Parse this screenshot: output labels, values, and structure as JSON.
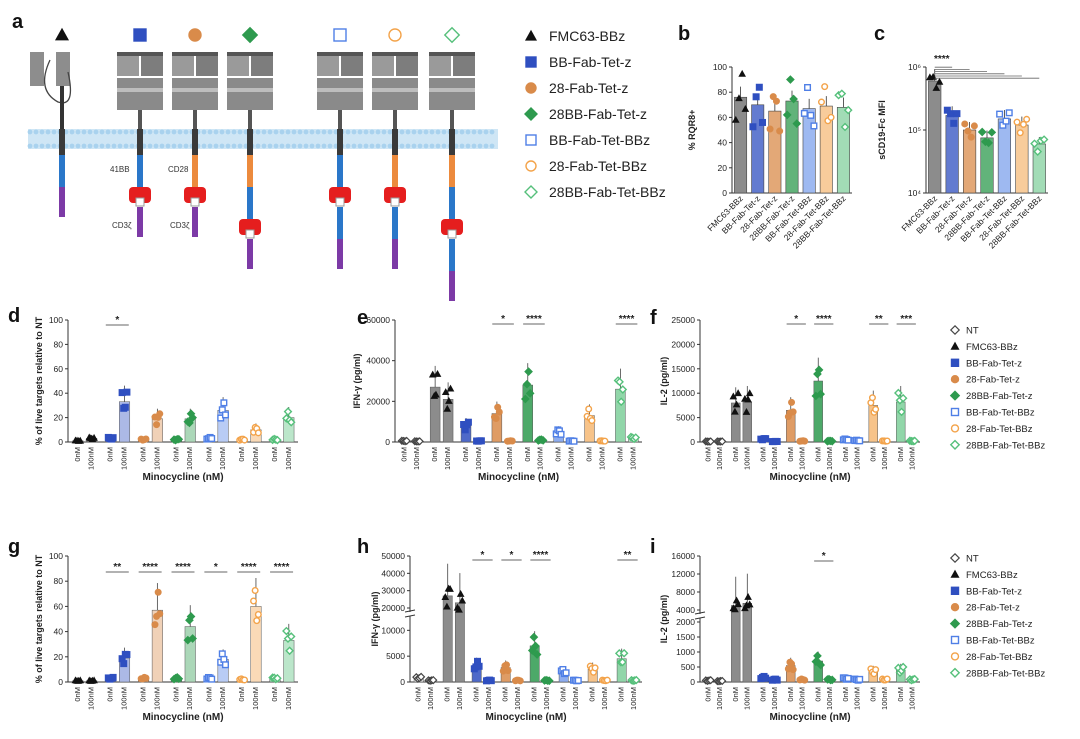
{
  "panel_letters": [
    "a",
    "b",
    "c",
    "d",
    "e",
    "f",
    "g",
    "h",
    "i"
  ],
  "constructs": [
    {
      "name": "FMC63-BBz",
      "color": "#111111",
      "marker": "triangle",
      "fill": "#111111"
    },
    {
      "name": "BB-Fab-Tet-z",
      "color": "#2f4fc0",
      "marker": "square",
      "fill": "#2f4fc0"
    },
    {
      "name": "28-Fab-Tet-z",
      "color": "#d98b4a",
      "marker": "circle",
      "fill": "#d98b4a"
    },
    {
      "name": "28BB-Fab-Tet-z",
      "color": "#2e9a4e",
      "marker": "diamond",
      "fill": "#2e9a4e"
    },
    {
      "name": "BB-Fab-Tet-BBz",
      "color": "#4f7fe6",
      "marker": "square",
      "fill": "none"
    },
    {
      "name": "28-Fab-Tet-BBz",
      "color": "#f3a34a",
      "marker": "circle",
      "fill": "none"
    },
    {
      "name": "28BB-Fab-Tet-BBz",
      "color": "#56c07b",
      "marker": "diamond",
      "fill": "none"
    }
  ],
  "domain_labels": {
    "bb": "41BB",
    "cd28": "CD28",
    "cd3a": "CD3ζ",
    "cd3b": "CD3ζ",
    "zeta": "ζ"
  },
  "legend2": [
    "NT",
    "FMC63-BBz",
    "BB-Fab-Tet-z",
    "28-Fab-Tet-z",
    "28BB-Fab-Tet-z",
    "BB-Fab-Tet-BBz",
    "28-Fab-Tet-BBz",
    "28BB-Fab-Tet-BBz"
  ],
  "x_tick_labels": [
    "0nM",
    "100nM"
  ],
  "chart_data": [
    {
      "panel": "b",
      "type": "bar",
      "ylabel": "% RQR8+",
      "ylim": [
        0,
        100
      ],
      "yticks": [
        0,
        20,
        40,
        60,
        80,
        100
      ],
      "categories": [
        "FMC63-BBz",
        "BB-Fab-Tet-z",
        "28-Fab-Tet-z",
        "28BB-Fab-Tet-z",
        "BB-Fab-Tet-BBz",
        "28-Fab-Tet-BBz",
        "28BB-Fab-Tet-BBz"
      ],
      "values": [
        76,
        70,
        65,
        73,
        67,
        69,
        68
      ]
    },
    {
      "panel": "c",
      "type": "bar",
      "ylabel": "sCD19-Fc MFI",
      "scale": "log",
      "ylim": [
        10000,
        1000000
      ],
      "ytick_labels": [
        "10⁴",
        "10⁵",
        "10⁶"
      ],
      "categories": [
        "FMC63-BBz",
        "BB-Fab-Tet-z",
        "28-Fab-Tet-z",
        "28BB-Fab-Tet-z",
        "BB-Fab-Tet-BBz",
        "28-Fab-Tet-BBz",
        "28BB-Fab-Tet-BBz"
      ],
      "values": [
        600000,
        170000,
        100000,
        75000,
        150000,
        120000,
        60000
      ],
      "significance": "****"
    },
    {
      "panel": "d",
      "type": "bar",
      "xlabel": "Minocycline (nM)",
      "ylabel": "% of live targets relative to NT",
      "ylim": [
        0,
        100
      ],
      "yticks": [
        0,
        20,
        40,
        60,
        80,
        100
      ],
      "groups": [
        "FMC63-BBz",
        "BB-Fab-Tet-z",
        "28-Fab-Tet-z",
        "28BB-Fab-Tet-z",
        "BB-Fab-Tet-BBz",
        "28-Fab-Tet-BBz",
        "28BB-Fab-Tet-BBz"
      ],
      "series": [
        {
          "values": [
            1,
            3,
            2,
            2,
            3,
            2,
            2
          ]
        },
        {
          "values": [
            3,
            33,
            19,
            19,
            26,
            10,
            20
          ]
        }
      ],
      "stars": [
        {
          "group": 1,
          "label": "*"
        }
      ]
    },
    {
      "panel": "e",
      "type": "bar",
      "xlabel": "Minocycline (nM)",
      "ylabel": "IFN-γ (pg/ml)",
      "ylim": [
        0,
        60000
      ],
      "yticks": [
        0,
        20000,
        40000,
        60000
      ],
      "groups": [
        "NT",
        "FMC63-BBz",
        "BB-Fab-Tet-z",
        "28-Fab-Tet-z",
        "28BB-Fab-Tet-z",
        "BB-Fab-Tet-BBz",
        "28-Fab-Tet-BBz",
        "28BB-Fab-Tet-BBz"
      ],
      "series": [
        {
          "values": [
            500,
            27000,
            8000,
            14000,
            28000,
            5000,
            13000,
            26000
          ]
        },
        {
          "values": [
            300,
            21000,
            500,
            500,
            1000,
            500,
            500,
            2000
          ]
        }
      ],
      "stars": [
        {
          "group": 3,
          "label": "*"
        },
        {
          "group": 4,
          "label": "****"
        },
        {
          "group": 7,
          "label": "****"
        }
      ]
    },
    {
      "panel": "f",
      "type": "bar",
      "xlabel": "Minocycline (nM)",
      "ylabel": "IL-2 (pg/ml)",
      "ylim": [
        0,
        25000
      ],
      "yticks": [
        0,
        5000,
        10000,
        15000,
        20000,
        25000
      ],
      "groups": [
        "NT",
        "FMC63-BBz",
        "BB-Fab-Tet-z",
        "28-Fab-Tet-z",
        "28BB-Fab-Tet-z",
        "BB-Fab-Tet-BBz",
        "28-Fab-Tet-BBz",
        "28BB-Fab-Tet-BBz"
      ],
      "series": [
        {
          "values": [
            100,
            8000,
            600,
            6500,
            12500,
            500,
            7500,
            8200
          ]
        },
        {
          "values": [
            100,
            8200,
            100,
            200,
            200,
            300,
            200,
            200
          ]
        }
      ],
      "stars": [
        {
          "group": 3,
          "label": "*"
        },
        {
          "group": 4,
          "label": "****"
        },
        {
          "group": 6,
          "label": "**"
        },
        {
          "group": 7,
          "label": "***"
        }
      ]
    },
    {
      "panel": "g",
      "type": "bar",
      "xlabel": "Minocycline (nM)",
      "ylabel": "% of live targets relative to NT",
      "ylim": [
        0,
        100
      ],
      "yticks": [
        0,
        20,
        40,
        60,
        80,
        100
      ],
      "groups": [
        "FMC63-BBz",
        "BB-Fab-Tet-z",
        "28-Fab-Tet-z",
        "28BB-Fab-Tet-z",
        "BB-Fab-Tet-BBz",
        "28-Fab-Tet-BBz",
        "28BB-Fab-Tet-BBz"
      ],
      "series": [
        {
          "values": [
            1,
            3,
            3,
            3,
            3,
            2,
            3
          ]
        },
        {
          "values": [
            1,
            19,
            57,
            44,
            18,
            60,
            33
          ]
        }
      ],
      "stars": [
        {
          "group": 1,
          "label": "**"
        },
        {
          "group": 2,
          "label": "****"
        },
        {
          "group": 3,
          "label": "****"
        },
        {
          "group": 4,
          "label": "*"
        },
        {
          "group": 5,
          "label": "****"
        },
        {
          "group": 6,
          "label": "****"
        }
      ]
    },
    {
      "panel": "h",
      "type": "bar",
      "xlabel": "Minocycline (nM)",
      "ylabel": "IFN-γ (pg/ml)",
      "axis_break": true,
      "ytick_labels": [
        "0",
        "5000",
        "10000",
        "20000",
        "30000",
        "40000",
        "50000"
      ],
      "groups": [
        "NT",
        "FMC63-BBz",
        "BB-Fab-Tet-z",
        "28-Fab-Tet-z",
        "28BB-Fab-Tet-z",
        "BB-Fab-Tet-BBz",
        "28-Fab-Tet-BBz",
        "28BB-Fab-Tet-BBz"
      ],
      "series": [
        {
          "values": [
            800,
            27000,
            3200,
            2800,
            7000,
            2000,
            2500,
            4500
          ]
        },
        {
          "values": [
            300,
            23000,
            300,
            300,
            300,
            300,
            300,
            300
          ]
        }
      ],
      "stars": [
        {
          "group": 2,
          "label": "*"
        },
        {
          "group": 3,
          "label": "*"
        },
        {
          "group": 4,
          "label": "****"
        },
        {
          "group": 7,
          "label": "**"
        }
      ]
    },
    {
      "panel": "i",
      "type": "bar",
      "xlabel": "Minocycline (nM)",
      "ylabel": "IL-2 (pg/ml)",
      "axis_break": true,
      "ytick_labels": [
        "0",
        "500",
        "1000",
        "1500",
        "2000",
        "4000",
        "8000",
        "12000",
        "16000"
      ],
      "groups": [
        "NT",
        "FMC63-BBz",
        "BB-Fab-Tet-z",
        "28-Fab-Tet-z",
        "28BB-Fab-Tet-z",
        "BB-Fab-Tet-BBz",
        "28-Fab-Tet-BBz",
        "28BB-Fab-Tet-BBz"
      ],
      "series": [
        {
          "values": [
            50,
            5000,
            150,
            550,
            700,
            120,
            350,
            400
          ]
        },
        {
          "values": [
            30,
            5500,
            80,
            80,
            80,
            80,
            80,
            80
          ]
        }
      ],
      "stars": [
        {
          "group": 4,
          "label": "*"
        }
      ]
    }
  ]
}
